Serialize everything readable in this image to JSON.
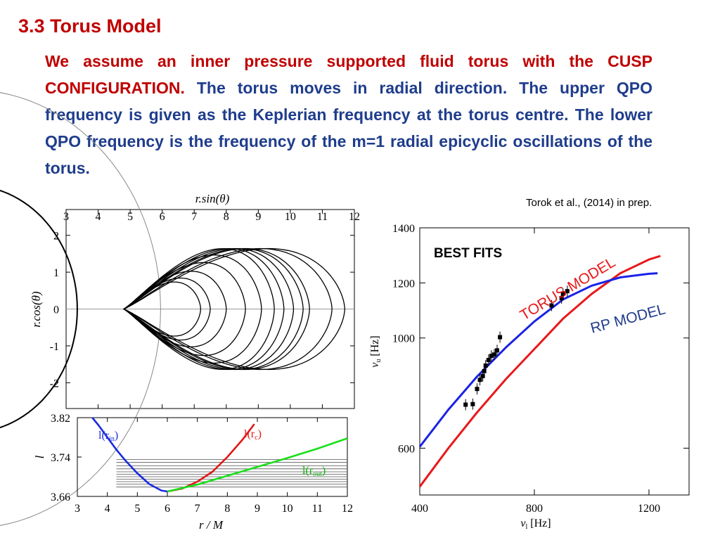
{
  "slide": {
    "title": "3.3 Torus Model",
    "para_red": "We assume an inner pressure supported fluid torus with the CUSP CONFIGURATION.",
    "para_blue": " The torus moves in radial direction.  The upper QPO frequency  is given as the Keplerian frequency at the torus centre. The lower QPO frequency is the frequency of the m=1 radial epicyclic oscillations of the torus.",
    "citation": "Torok et al., (2014) in prep."
  },
  "chart_data": [
    {
      "type": "line",
      "panel": "torus cross-sections",
      "xlabel": "r.sin(θ)",
      "ylabel": "r.cos(θ)",
      "xlim": [
        3,
        12
      ],
      "ylim": [
        -2.7,
        2.7
      ],
      "x_ticks": [
        "3",
        "4",
        "5",
        "6",
        "7",
        "8",
        "9",
        "10",
        "11",
        "12"
      ],
      "y_ticks": [
        "2",
        "1",
        "0",
        "-1",
        "-2"
      ],
      "cusp_r": 4.8,
      "torus_outer_edges": [
        7.2,
        7.5,
        8.0,
        8.6,
        9.1,
        9.5,
        9.8,
        10.1,
        10.4,
        10.6,
        11.3,
        11.7
      ]
    },
    {
      "type": "line",
      "panel": "angular momentum",
      "xlabel": "r / M",
      "ylabel": "l",
      "xlim": [
        3,
        12
      ],
      "ylim": [
        3.66,
        3.82
      ],
      "x_ticks": [
        "3",
        "4",
        "5",
        "6",
        "7",
        "8",
        "9",
        "10",
        "11",
        "12"
      ],
      "y_ticks": [
        "3.82",
        "3.74",
        "3.66"
      ],
      "series": [
        {
          "name": "l(rin)",
          "color": "#1a2be0",
          "x": [
            3.5,
            3.7,
            4.0,
            4.3,
            4.6,
            5.0,
            5.4,
            5.8,
            6.0
          ],
          "y": [
            3.82,
            3.805,
            3.78,
            3.755,
            3.733,
            3.707,
            3.685,
            3.672,
            3.67
          ]
        },
        {
          "name": "l(rc)",
          "color": "#e01818",
          "x": [
            6.0,
            6.5,
            7.0,
            7.5,
            8.0,
            8.5,
            8.9
          ],
          "y": [
            3.67,
            3.676,
            3.69,
            3.71,
            3.74,
            3.775,
            3.807
          ]
        },
        {
          "name": "l(rout)",
          "color": "#18e018",
          "x": [
            6.0,
            7.0,
            8.0,
            9.0,
            10.0,
            11.0,
            12.0
          ],
          "y": [
            3.67,
            3.684,
            3.702,
            3.72,
            3.738,
            3.757,
            3.778
          ]
        }
      ],
      "l_levels": [
        3.679,
        3.685,
        3.69,
        3.695,
        3.7,
        3.705,
        3.71,
        3.716,
        3.722,
        3.729,
        3.735
      ]
    },
    {
      "type": "line",
      "panel": "best fits",
      "annotation": "BEST FITS",
      "xlabel": "ν1  [Hz]",
      "ylabel": "νu  [Hz]",
      "xlim": [
        400,
        1340
      ],
      "ylim": [
        430,
        1400
      ],
      "x_ticks": [
        400,
        800,
        1200
      ],
      "y_ticks": [
        600,
        1000,
        1200,
        1400
      ],
      "series": [
        {
          "name": "TORUS MODEL",
          "color": "#e8191b",
          "x": [
            400,
            500,
            600,
            700,
            800,
            900,
            1000,
            1100,
            1200,
            1240
          ],
          "y": [
            460,
            600,
            730,
            850,
            960,
            1070,
            1160,
            1235,
            1285,
            1298
          ]
        },
        {
          "name": "RP MODEL",
          "color": "#1a22e6",
          "x": [
            400,
            500,
            600,
            700,
            800,
            900,
            1000,
            1100,
            1200,
            1230
          ],
          "y": [
            605,
            740,
            860,
            965,
            1060,
            1140,
            1190,
            1220,
            1233,
            1235
          ]
        }
      ],
      "points": {
        "x": [
          560,
          585,
          600,
          610,
          620,
          625,
          630,
          640,
          650,
          660,
          670,
          680,
          860,
          895,
          900,
          915
        ],
        "y": [
          758,
          760,
          815,
          848,
          862,
          880,
          900,
          920,
          935,
          940,
          955,
          1003,
          1118,
          1145,
          1160,
          1170
        ]
      }
    }
  ]
}
